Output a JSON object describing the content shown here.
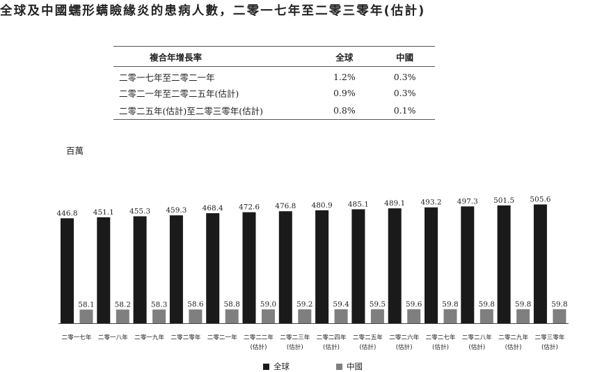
{
  "title": "全球及中國蠕形螨瞼緣炎的患病人數，二零一七年至二零三零年(估計)",
  "cagr_table": {
    "headers": [
      "複合年增長率",
      "全球",
      "中國"
    ],
    "rows": [
      [
        "二零一七年至二零二一年",
        "1.2%",
        "0.3%"
      ],
      [
        "二零二一年至二零二五年(估計)",
        "0.9%",
        "0.3%"
      ],
      [
        "二零二五年(估計)至二零三零年(估計)",
        "0.8%",
        "0.1%"
      ]
    ]
  },
  "chart_data": {
    "type": "bar",
    "title": "",
    "ylabel": "百萬",
    "xlabel": "",
    "categories": [
      [
        "二零一七年",
        ""
      ],
      [
        "二零一八年",
        ""
      ],
      [
        "二零一九年",
        ""
      ],
      [
        "二零二零年",
        ""
      ],
      [
        "二零二一年",
        ""
      ],
      [
        "二零二二年",
        "(估計)"
      ],
      [
        "二零二三年",
        "(估計)"
      ],
      [
        "二零二四年",
        "(估計)"
      ],
      [
        "二零二五年",
        "(估計)"
      ],
      [
        "二零二六年",
        "(估計)"
      ],
      [
        "二零二七年",
        "(估計)"
      ],
      [
        "二零二八年",
        "(估計)"
      ],
      [
        "二零二九年",
        "(估計)"
      ],
      [
        "二零三零年",
        "(估計)"
      ]
    ],
    "series": [
      {
        "name": "全球",
        "color": "#1a1a1a",
        "values": [
          446.8,
          451.1,
          455.3,
          459.3,
          468.4,
          472.6,
          476.8,
          480.9,
          485.1,
          489.1,
          493.2,
          497.3,
          501.5,
          505.6
        ]
      },
      {
        "name": "中國",
        "color": "#7f7f7f",
        "values": [
          58.1,
          58.2,
          58.3,
          58.6,
          58.8,
          59.0,
          59.2,
          59.4,
          59.5,
          59.6,
          59.8,
          59.8,
          59.8,
          59.8
        ]
      }
    ],
    "ylim": [
      0,
      505.6
    ],
    "grid": false,
    "legend": "bottom-center"
  }
}
